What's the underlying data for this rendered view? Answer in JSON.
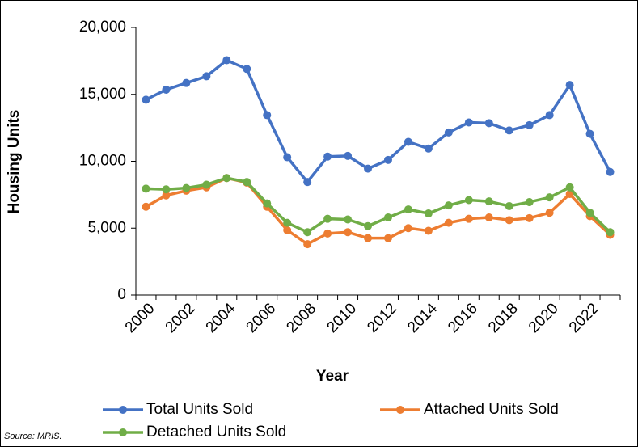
{
  "chart_data": {
    "type": "line",
    "y_label": "Housing Units",
    "x_label": "Year",
    "source": "Source: MRIS.",
    "categories": [
      "2000",
      null,
      "2002",
      null,
      "2004",
      null,
      "2006",
      null,
      "2008",
      null,
      "2010",
      null,
      "2012",
      null,
      "2014",
      null,
      "2016",
      null,
      "2018",
      null,
      "2020",
      null,
      "2022",
      null
    ],
    "series": [
      {
        "name": "Total Units Sold",
        "color": "#4472c4",
        "values": [
          14600,
          15350,
          15850,
          16350,
          17550,
          16900,
          13450,
          10300,
          8450,
          10350,
          10400,
          9450,
          10100,
          11450,
          10950,
          12150,
          12900,
          12850,
          12300,
          12700,
          13450,
          15700,
          12050,
          9200
        ]
      },
      {
        "name": "Attached Units Sold",
        "color": "#ed7d31",
        "values": [
          6600,
          7450,
          7800,
          8050,
          8750,
          8400,
          6600,
          4850,
          3800,
          4600,
          4700,
          4250,
          4250,
          5000,
          4800,
          5400,
          5700,
          5800,
          5600,
          5750,
          6150,
          7550,
          5900,
          4500
        ]
      },
      {
        "name": "Detached Units Sold",
        "color": "#70ad47",
        "values": [
          7950,
          7900,
          8000,
          8250,
          8750,
          8450,
          6850,
          5400,
          4700,
          5700,
          5650,
          5150,
          5800,
          6400,
          6100,
          6700,
          7100,
          7000,
          6650,
          6950,
          7300,
          8050,
          6150,
          4700
        ]
      }
    ],
    "ylim": [
      0,
      20000
    ],
    "yticks": [
      0,
      {
        "value": 5000,
        "label": "5,000"
      },
      {
        "value": 10000,
        "label": "10,000"
      },
      {
        "value": 15000,
        "label": "15,000"
      },
      {
        "value": 20000,
        "label": "20,000"
      }
    ],
    "legend": "bottom"
  }
}
